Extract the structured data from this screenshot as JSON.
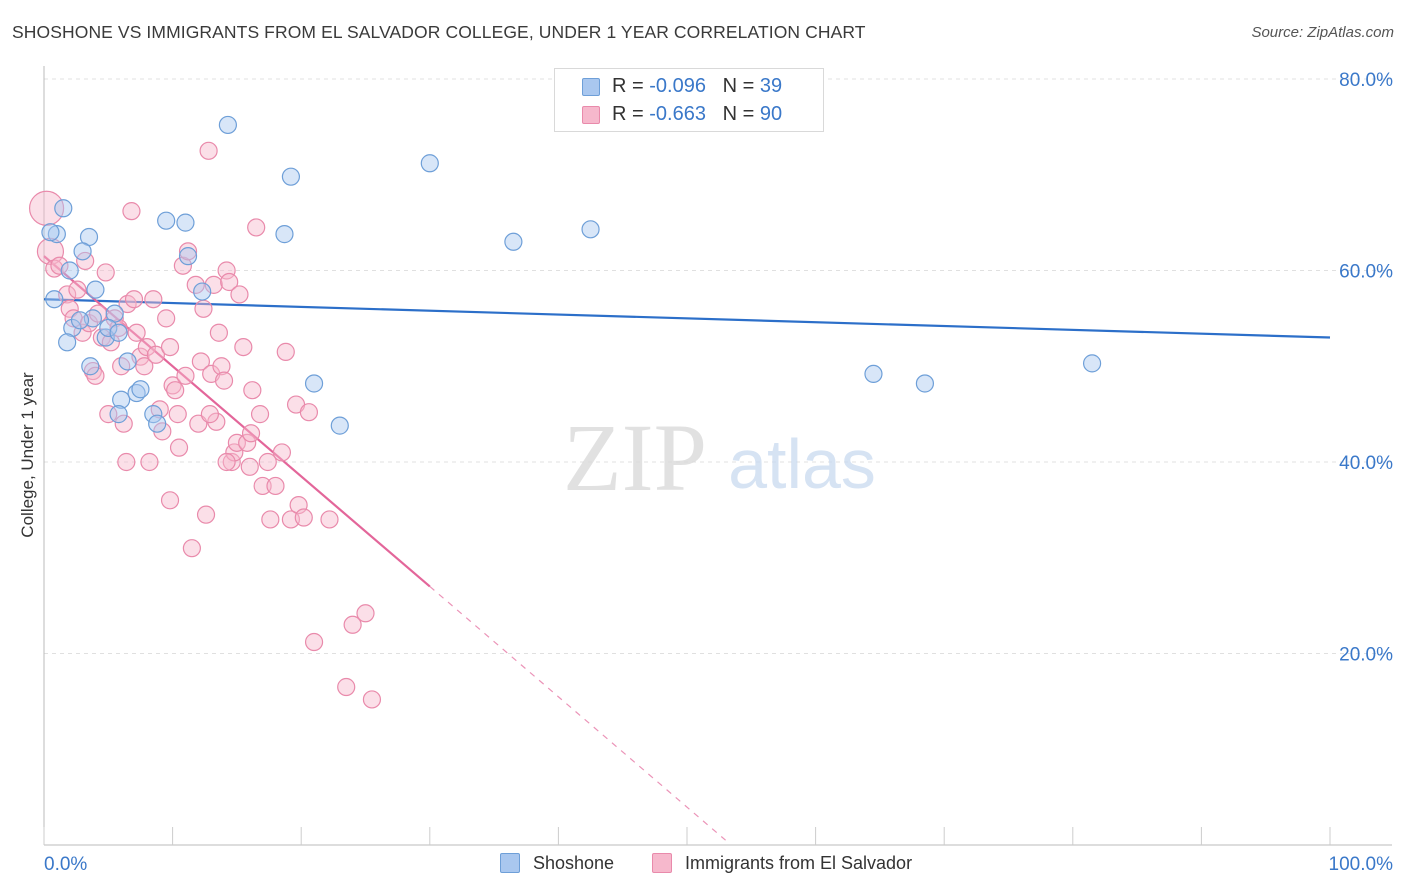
{
  "title": "SHOSHONE VS IMMIGRANTS FROM EL SALVADOR COLLEGE, UNDER 1 YEAR CORRELATION CHART",
  "source": "Source: ZipAtlas.com",
  "watermark": {
    "zip": "ZIP",
    "atlas": "atlas"
  },
  "colors": {
    "blue_fill": "#a9c7ef",
    "blue_stroke": "#6e9fd8",
    "blue_line": "#2c6fc9",
    "pink_fill": "#f6b8cc",
    "pink_stroke": "#e98aab",
    "pink_line": "#e3669a",
    "axis_text": "#3a78c9",
    "grid": "#e0e0e0"
  },
  "legend": {
    "rows": [
      {
        "r_label": "R =",
        "r_value": "-0.096",
        "n_label": "N =",
        "n_value": "39",
        "color": "blue"
      },
      {
        "r_label": "R =",
        "r_value": "-0.663",
        "n_label": "N =",
        "n_value": "90",
        "color": "pink"
      }
    ]
  },
  "chart_data": {
    "type": "scatter",
    "title": "SHOSHONE VS IMMIGRANTS FROM EL SALVADOR COLLEGE, UNDER 1 YEAR CORRELATION CHART",
    "xlabel": "",
    "ylabel": "College, Under 1 year",
    "xlim": [
      0,
      100
    ],
    "ylim": [
      0,
      80
    ],
    "x_tick_labels": [
      "0.0%",
      "100.0%"
    ],
    "y_ticks": [
      20,
      40,
      60,
      80
    ],
    "y_tick_labels": [
      "20.0%",
      "40.0%",
      "60.0%",
      "80.0%"
    ],
    "legend_position": "bottom",
    "series": [
      {
        "name": "Shoshone",
        "color": "blue",
        "r": -0.096,
        "n": 39,
        "trend": {
          "x0": 0,
          "y0": 57.0,
          "x1": 100,
          "y1": 53.0,
          "dashed_to": null
        },
        "points": [
          [
            1.5,
            66.5
          ],
          [
            3.5,
            63.5
          ],
          [
            4.0,
            58.0
          ],
          [
            3.0,
            62.0
          ],
          [
            1.0,
            63.8
          ],
          [
            2.0,
            60.0
          ],
          [
            0.8,
            57.0
          ],
          [
            2.2,
            54.0
          ],
          [
            1.8,
            52.5
          ],
          [
            3.8,
            55.0
          ],
          [
            4.8,
            53.0
          ],
          [
            5.5,
            55.5
          ],
          [
            5.0,
            54.0
          ],
          [
            5.8,
            53.5
          ],
          [
            3.6,
            50.0
          ],
          [
            6.5,
            50.5
          ],
          [
            6.0,
            46.5
          ],
          [
            7.2,
            47.2
          ],
          [
            7.5,
            47.6
          ],
          [
            5.8,
            45.0
          ],
          [
            8.5,
            45.0
          ],
          [
            8.8,
            44.0
          ],
          [
            9.5,
            65.2
          ],
          [
            11.2,
            61.5
          ],
          [
            11.0,
            65.0
          ],
          [
            12.3,
            57.8
          ],
          [
            14.3,
            75.2
          ],
          [
            18.7,
            63.8
          ],
          [
            19.2,
            69.8
          ],
          [
            21.0,
            48.2
          ],
          [
            23.0,
            43.8
          ],
          [
            30.0,
            71.2
          ],
          [
            36.5,
            63.0
          ],
          [
            42.5,
            64.3
          ],
          [
            64.5,
            49.2
          ],
          [
            68.5,
            48.2
          ],
          [
            81.5,
            50.3
          ],
          [
            0.5,
            64.0
          ],
          [
            2.8,
            54.8
          ]
        ]
      },
      {
        "name": "Immigrants from El Salvador",
        "color": "pink",
        "r": -0.663,
        "n": 90,
        "trend": {
          "x0": 0,
          "y0": 61.5,
          "x1": 30,
          "y1": 27.0,
          "dashed_to": {
            "x": 53,
            "y": 0.5
          }
        },
        "points": [
          [
            0.2,
            66.5
          ],
          [
            0.5,
            62.0
          ],
          [
            0.8,
            60.2
          ],
          [
            1.2,
            60.5
          ],
          [
            1.8,
            57.5
          ],
          [
            2.0,
            56.0
          ],
          [
            2.3,
            55.0
          ],
          [
            2.6,
            58.0
          ],
          [
            3.0,
            53.5
          ],
          [
            3.5,
            54.5
          ],
          [
            3.8,
            49.5
          ],
          [
            4.2,
            55.5
          ],
          [
            4.5,
            53.0
          ],
          [
            4.8,
            59.8
          ],
          [
            5.0,
            45.0
          ],
          [
            5.2,
            52.5
          ],
          [
            5.5,
            55.0
          ],
          [
            5.8,
            54.0
          ],
          [
            6.0,
            50.0
          ],
          [
            6.2,
            44.0
          ],
          [
            6.5,
            56.5
          ],
          [
            6.8,
            66.2
          ],
          [
            7.0,
            57.0
          ],
          [
            7.2,
            53.5
          ],
          [
            7.5,
            51.0
          ],
          [
            7.8,
            50.0
          ],
          [
            8.0,
            52.0
          ],
          [
            8.2,
            40.0
          ],
          [
            8.5,
            57.0
          ],
          [
            8.7,
            51.2
          ],
          [
            9.0,
            45.5
          ],
          [
            9.2,
            43.2
          ],
          [
            9.5,
            55.0
          ],
          [
            9.8,
            52.0
          ],
          [
            10.0,
            48.0
          ],
          [
            10.2,
            47.5
          ],
          [
            10.5,
            41.5
          ],
          [
            10.8,
            60.5
          ],
          [
            11.0,
            49.0
          ],
          [
            11.2,
            62.0
          ],
          [
            11.5,
            31.0
          ],
          [
            11.8,
            58.5
          ],
          [
            12.0,
            44.0
          ],
          [
            12.2,
            50.5
          ],
          [
            12.4,
            56.0
          ],
          [
            12.6,
            34.5
          ],
          [
            12.8,
            72.5
          ],
          [
            13.0,
            49.2
          ],
          [
            13.2,
            58.5
          ],
          [
            13.4,
            44.2
          ],
          [
            13.6,
            53.5
          ],
          [
            13.8,
            50.0
          ],
          [
            14.0,
            48.5
          ],
          [
            14.2,
            60.0
          ],
          [
            14.4,
            58.8
          ],
          [
            14.6,
            40.0
          ],
          [
            14.8,
            41.0
          ],
          [
            15.0,
            42.0
          ],
          [
            15.2,
            57.5
          ],
          [
            15.5,
            52.0
          ],
          [
            15.8,
            42.0
          ],
          [
            16.0,
            39.5
          ],
          [
            16.2,
            47.5
          ],
          [
            16.5,
            64.5
          ],
          [
            16.8,
            45.0
          ],
          [
            17.0,
            37.5
          ],
          [
            17.4,
            40.0
          ],
          [
            18.0,
            37.5
          ],
          [
            18.5,
            41.0
          ],
          [
            18.8,
            51.5
          ],
          [
            19.2,
            34.0
          ],
          [
            19.6,
            46.0
          ],
          [
            19.8,
            35.5
          ],
          [
            20.2,
            34.2
          ],
          [
            20.6,
            45.2
          ],
          [
            21.0,
            21.2
          ],
          [
            23.5,
            16.5
          ],
          [
            24.0,
            23.0
          ],
          [
            25.0,
            24.2
          ],
          [
            25.5,
            15.2
          ],
          [
            3.2,
            61.0
          ],
          [
            4.0,
            49.0
          ],
          [
            6.4,
            40.0
          ],
          [
            9.8,
            36.0
          ],
          [
            10.4,
            45.0
          ],
          [
            12.9,
            45.0
          ],
          [
            14.2,
            40.0
          ],
          [
            16.1,
            43.0
          ],
          [
            17.6,
            34.0
          ],
          [
            22.2,
            34.0
          ]
        ]
      }
    ]
  },
  "bottom_legend": [
    {
      "label": "Shoshone",
      "color": "blue"
    },
    {
      "label": "Immigrants from El Salvador",
      "color": "pink"
    }
  ]
}
